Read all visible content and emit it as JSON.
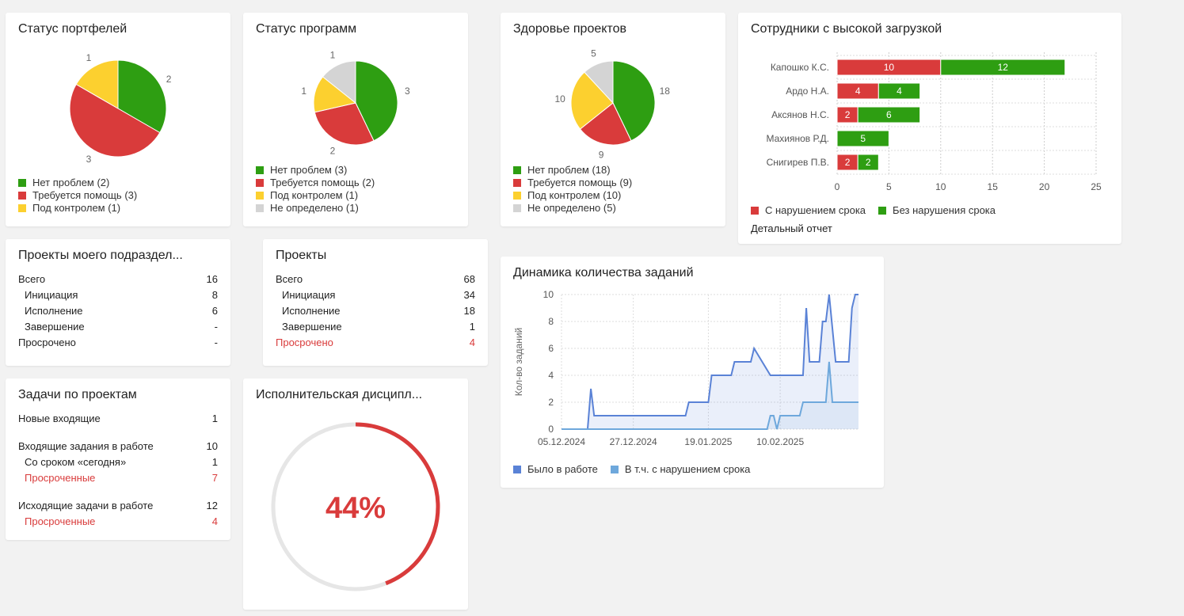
{
  "colors": {
    "green": "#2e9e12",
    "red": "#d93b3b",
    "yellow": "#fcd02f",
    "gray": "#d4d4d4",
    "blue": "#5a82d6",
    "lightblue": "#6ea8dc"
  },
  "portfolio_status": {
    "title": "Статус портфелей",
    "legend": [
      "Нет проблем (2)",
      "Требуется помощь (3)",
      "Под контролем (1)"
    ]
  },
  "program_status": {
    "title": "Статус программ",
    "legend": [
      "Нет проблем (3)",
      "Требуется помощь (2)",
      "Под контролем (1)",
      "Не определено (1)"
    ]
  },
  "project_health": {
    "title": "Здоровье проектов",
    "legend": [
      "Нет проблем (18)",
      "Требуется помощь (9)",
      "Под контролем (10)",
      "Не определено (5)"
    ]
  },
  "workload": {
    "title": "Сотрудники с высокой загрузкой",
    "legend": [
      "С нарушением срока",
      "Без нарушения срока"
    ],
    "report_link": "Детальный отчет"
  },
  "dept_projects": {
    "title": "Проекты моего подраздел...",
    "rows": [
      {
        "label": "Всего",
        "value": "16"
      },
      {
        "label": "Инициация",
        "value": "8"
      },
      {
        "label": "Исполнение",
        "value": "6"
      },
      {
        "label": "Завершение",
        "value": "-"
      },
      {
        "label": "Просрочено",
        "value": "-"
      }
    ]
  },
  "projects": {
    "title": "Проекты",
    "rows": [
      {
        "label": "Всего",
        "value": "68"
      },
      {
        "label": "Инициация",
        "value": "34"
      },
      {
        "label": "Исполнение",
        "value": "18"
      },
      {
        "label": "Завершение",
        "value": "1"
      },
      {
        "label": "Просрочено",
        "value": "4"
      }
    ]
  },
  "tasks": {
    "title": "Задачи по проектам",
    "rows": [
      {
        "label": "Новые входящие",
        "value": "1"
      },
      {
        "label": "Входящие задания в работе",
        "value": "10"
      },
      {
        "label": "Со сроком «сегодня»",
        "value": "1"
      },
      {
        "label": "Просроченные",
        "value": "7"
      },
      {
        "label": "Исходящие задачи в работе",
        "value": "12"
      },
      {
        "label": "Просроченные",
        "value": "4"
      }
    ]
  },
  "discipline": {
    "title": "Исполнительская дисципл...",
    "value_label": "44%",
    "percent": 44
  },
  "dynamics": {
    "title": "Динамика количества заданий",
    "legend": [
      "Было в работе",
      "В т.ч. с нарушением срока"
    ]
  },
  "chart_data": [
    {
      "type": "pie",
      "categories": [
        "Нет проблем",
        "Требуется помощь",
        "Под контролем"
      ],
      "values": [
        2,
        3,
        1
      ],
      "title": "Статус портфелей"
    },
    {
      "type": "pie",
      "categories": [
        "Нет проблем",
        "Требуется помощь",
        "Под контролем",
        "Не определено"
      ],
      "values": [
        3,
        2,
        1,
        1
      ],
      "title": "Статус программ"
    },
    {
      "type": "pie",
      "categories": [
        "Нет проблем",
        "Требуется помощь",
        "Под контролем",
        "Не определено"
      ],
      "values": [
        18,
        9,
        10,
        5
      ],
      "title": "Здоровье проектов"
    },
    {
      "type": "bar",
      "orientation": "horizontal",
      "stacked": true,
      "title": "Сотрудники с высокой загрузкой",
      "categories": [
        "Капошко К.С.",
        "Ардо Н.А.",
        "Аксянов Н.С.",
        "Махиянов Р.Д.",
        "Снигирев П.В."
      ],
      "series": [
        {
          "name": "С нарушением срока",
          "values": [
            10,
            4,
            2,
            0,
            2
          ]
        },
        {
          "name": "Без нарушения срока",
          "values": [
            12,
            4,
            6,
            5,
            2
          ]
        }
      ],
      "xlim": [
        0,
        25
      ],
      "xticks": [
        0,
        5,
        10,
        15,
        20,
        25
      ],
      "grid": true,
      "legend": "bottom"
    },
    {
      "type": "area",
      "title": "Динамика количества заданий",
      "ylabel": "Кол-во заданий",
      "ylim": [
        0,
        10
      ],
      "yticks": [
        0,
        2,
        4,
        6,
        8,
        10
      ],
      "xticks": [
        "05.12.2024",
        "27.12.2024",
        "19.01.2025",
        "10.02.2025"
      ],
      "grid": true,
      "legend": "bottom",
      "series": [
        {
          "name": "Было в работе",
          "x": [
            "2024-12-05",
            "2024-12-13",
            "2024-12-14",
            "2024-12-15",
            "2025-01-12",
            "2025-01-13",
            "2025-01-19",
            "2025-01-20",
            "2025-01-26",
            "2025-01-27",
            "2025-02-01",
            "2025-02-02",
            "2025-02-07",
            "2025-02-08",
            "2025-02-17",
            "2025-02-18",
            "2025-02-19",
            "2025-02-22",
            "2025-02-23",
            "2025-02-24",
            "2025-02-25",
            "2025-02-27",
            "2025-02-28",
            "2025-03-03",
            "2025-03-04",
            "2025-03-05",
            "2025-03-06"
          ],
          "y": [
            0,
            0,
            3,
            1,
            1,
            2,
            2,
            4,
            4,
            5,
            5,
            6,
            4,
            4,
            4,
            9,
            5,
            5,
            8,
            8,
            10,
            5,
            5,
            5,
            9,
            10,
            10
          ]
        },
        {
          "name": "В т.ч. с нарушением срока",
          "x": [
            "2024-12-05",
            "2025-02-06",
            "2025-02-07",
            "2025-02-08",
            "2025-02-09",
            "2025-02-10",
            "2025-02-16",
            "2025-02-17",
            "2025-02-23",
            "2025-02-24",
            "2025-02-25",
            "2025-02-26",
            "2025-03-06"
          ],
          "y": [
            0,
            0,
            1,
            1,
            0,
            1,
            1,
            2,
            2,
            2,
            5,
            2,
            2
          ]
        }
      ]
    }
  ]
}
